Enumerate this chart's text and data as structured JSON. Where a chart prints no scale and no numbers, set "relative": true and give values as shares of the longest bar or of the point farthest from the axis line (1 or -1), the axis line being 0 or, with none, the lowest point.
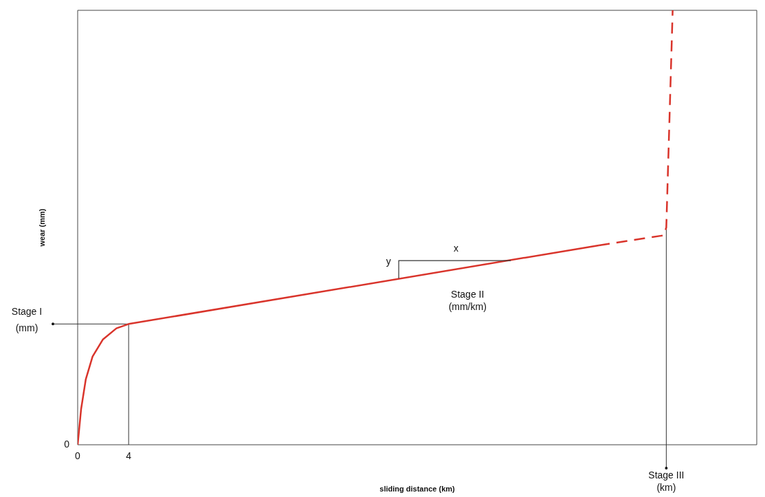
{
  "chart_data": {
    "type": "line",
    "relative": true,
    "xlabel": "sliding distance (km)",
    "ylabel": "wear (mm)",
    "xlim": [
      0,
      53.3
    ],
    "xticks": [
      0,
      4
    ],
    "series": [
      {
        "color": "#d9342b",
        "line_style": "solid",
        "x": [
          0,
          0.27,
          0.64,
          1.17,
          1.97,
          3.04,
          4,
          40.9
        ],
        "values": [
          0,
          0.082,
          0.151,
          0.203,
          0.242,
          0.268,
          0.278,
          0.459
        ]
      },
      {
        "color": "#d9342b",
        "line_style": "dashed",
        "x": [
          40.9,
          46.0,
          46.2,
          46.7
        ],
        "values": [
          0.459,
          0.482,
          0.5,
          1.0
        ]
      }
    ],
    "ref_lines": [
      {
        "axis": "y",
        "value": 0.278,
        "label": "Stage I\n(mm)",
        "color": "#333333"
      },
      {
        "axis": "x",
        "value": 4,
        "color": "#333333"
      },
      {
        "axis": "x",
        "value": 46.2,
        "label": "Stage III\n(km)",
        "color": "#333333"
      }
    ],
    "annotations": [
      {
        "text": "0",
        "x": 0,
        "y": 0
      },
      "y",
      "x",
      "Stage II\n(mm/km)"
    ]
  }
}
